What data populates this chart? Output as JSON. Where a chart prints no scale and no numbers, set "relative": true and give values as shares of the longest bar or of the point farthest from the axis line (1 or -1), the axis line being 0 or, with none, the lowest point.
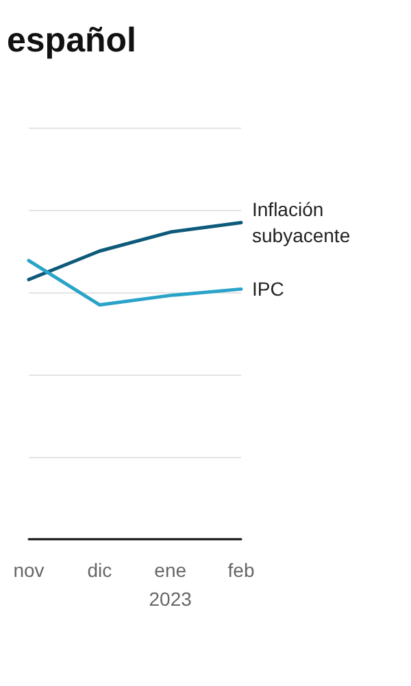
{
  "chart_data": {
    "type": "line",
    "title": "español",
    "relative": true,
    "grid": "y",
    "legend": false,
    "marker": "none",
    "line_style": "solid",
    "categories": [
      "nov",
      "dic",
      "ene\n2023",
      "feb"
    ],
    "series": [
      {
        "name": "Inflación subyacente",
        "color": "#0d5a7a",
        "values": [
          0.82,
          0.91,
          0.97,
          1
        ]
      },
      {
        "name": "IPC",
        "color": "#2aa3c9",
        "values": [
          0.88,
          0.74,
          0.77,
          0.79
        ]
      }
    ]
  }
}
